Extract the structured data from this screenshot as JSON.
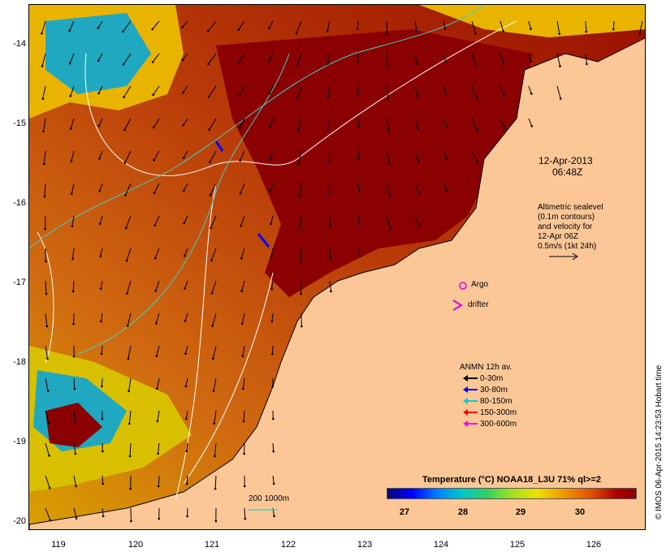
{
  "map": {
    "timestamp": [
      "12-Apr-2013",
      "06:48Z"
    ],
    "altimetry_note": [
      "Altimetric sealevel",
      "(0.1m contours)",
      "and velocity for",
      "12-Apr 06Z",
      "0.5m/s (1kt 24h)"
    ],
    "argo_label": "Argo",
    "drifter_label": "drifter",
    "depth_label": "200  1000m",
    "credit": "© IMOS 06-Apr-2015 14:23:53 Hobart time",
    "colors": {
      "land": "#fcc797",
      "warm_water": "#8b0000",
      "mid_water": "#c85a10",
      "cool_water": "#e8b400",
      "cold_water": "#20b0e0",
      "argo": "#e000e0",
      "contour": "#ffffff",
      "isobath": "#40d0c8"
    },
    "y_axis_labels": [
      "-14",
      "-15",
      "-16",
      "-17",
      "-18",
      "-19",
      "-20"
    ],
    "x_axis_labels": [
      "119",
      "120",
      "121",
      "122",
      "123",
      "124",
      "125",
      "126"
    ]
  },
  "legend": {
    "title": "ANMN 12h av.",
    "items": [
      {
        "label": "0-30m",
        "color": "#000000"
      },
      {
        "label": "30-80m",
        "color": "#0000ff"
      },
      {
        "label": "80-150m",
        "color": "#00d0d0"
      },
      {
        "label": "150-300m",
        "color": "#ff0000"
      },
      {
        "label": "300-600m",
        "color": "#ff00ff"
      }
    ]
  },
  "colorbar": {
    "title": "Temperature (°C) NOAA18_L3U 71% ql>=2",
    "ticks": [
      "27",
      "28",
      "29",
      "30"
    ]
  }
}
